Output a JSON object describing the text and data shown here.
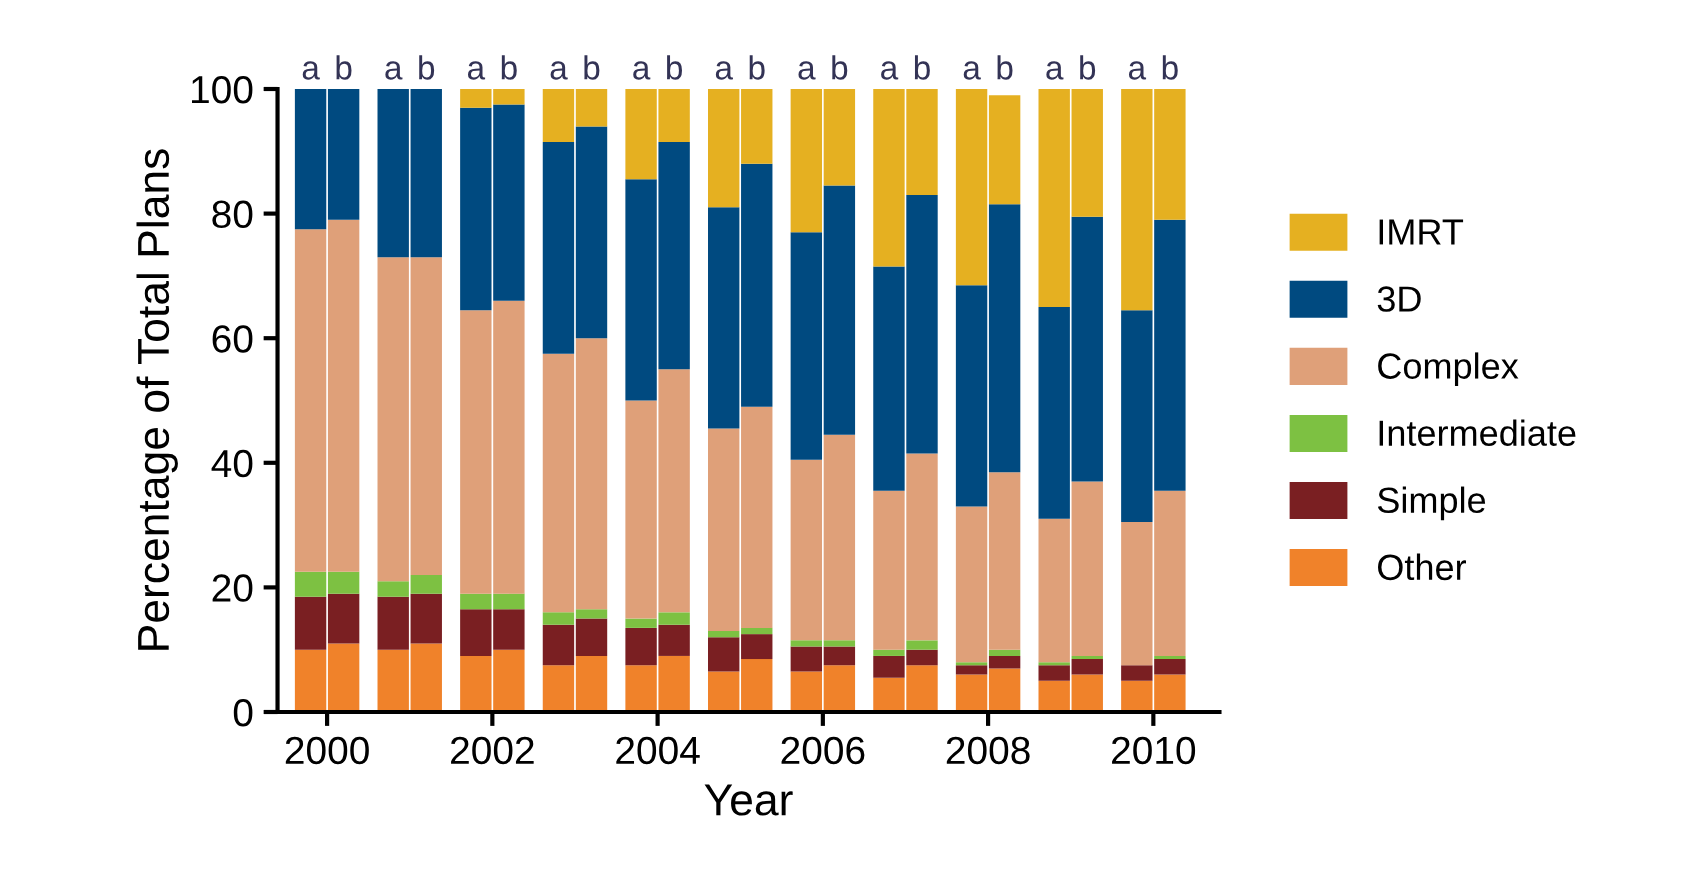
{
  "chart_data": {
    "type": "bar",
    "stacked": true,
    "xlabel": "Year",
    "ylabel": "Percentage of Total Plans",
    "x": [
      1999.8,
      2000.2,
      2000.8,
      2001.2,
      2001.8,
      2002.2,
      2002.8,
      2003.2,
      2003.8,
      2004.2,
      2004.8,
      2005.2,
      2005.8,
      2006.2,
      2006.8,
      2007.2,
      2007.8,
      2008.2,
      2008.8,
      2009.2,
      2009.8,
      2010.2
    ],
    "xlim": [
      1999.4,
      2010.8
    ],
    "xticks": [
      2000,
      2002,
      2004,
      2006,
      2008,
      2010
    ],
    "ylim": [
      0,
      100
    ],
    "yticks": [
      0,
      20,
      40,
      60,
      80,
      100
    ],
    "grid": false,
    "legend": "right",
    "series": [
      {
        "name": "Other",
        "color": "#f0822a",
        "values": [
          10,
          11,
          10,
          11,
          9,
          10,
          7.5,
          9,
          7.5,
          9,
          6.5,
          8.5,
          6.5,
          7.5,
          5.5,
          7.5,
          6,
          7,
          5,
          6,
          5,
          6
        ]
      },
      {
        "name": "Simple",
        "color": "#7a1f22",
        "values": [
          8.5,
          8,
          8.5,
          8,
          7.5,
          6.5,
          6.5,
          6,
          6,
          5,
          5.5,
          4,
          4,
          3,
          3.5,
          2.5,
          1.5,
          2,
          2.5,
          2.5,
          2.5,
          2.5
        ]
      },
      {
        "name": "Intermediate",
        "color": "#7dc142",
        "values": [
          4,
          3.5,
          2.5,
          3,
          2.5,
          2.5,
          2,
          1.5,
          1.5,
          2,
          1,
          1,
          1,
          1,
          1,
          1.5,
          0.5,
          1,
          0.5,
          0.5,
          0,
          0.5
        ]
      },
      {
        "name": "Complex",
        "color": "#dfa079",
        "values": [
          55,
          56.5,
          52,
          51,
          45.5,
          47,
          41.5,
          43.5,
          35,
          39,
          32.5,
          35.5,
          29,
          33,
          25.5,
          30,
          25,
          28.5,
          23,
          28,
          23,
          26.5
        ]
      },
      {
        "name": "3D",
        "color": "#004a80",
        "values": [
          22.5,
          21,
          27,
          27,
          32.5,
          31.5,
          34,
          34,
          35.5,
          36.5,
          35.5,
          39,
          36.5,
          40,
          36,
          41.5,
          35.5,
          43,
          34,
          42.5,
          34,
          43.5
        ]
      },
      {
        "name": "IMRT",
        "color": "#e5b021",
        "values": [
          0,
          0,
          0,
          0,
          3,
          2.5,
          8.5,
          6,
          14.5,
          8.5,
          19,
          12,
          23,
          15.5,
          28.5,
          17,
          31.5,
          17.5,
          35,
          20.5,
          35.5,
          21
        ]
      }
    ],
    "annotations": [
      {
        "text": "a",
        "x": 1999.8,
        "y": 100
      },
      {
        "text": "b",
        "x": 2000.2,
        "y": 100
      },
      {
        "text": "a",
        "x": 2000.8,
        "y": 100
      },
      {
        "text": "b",
        "x": 2001.2,
        "y": 100
      },
      {
        "text": "a",
        "x": 2001.8,
        "y": 100
      },
      {
        "text": "b",
        "x": 2002.2,
        "y": 100
      },
      {
        "text": "a",
        "x": 2002.8,
        "y": 100
      },
      {
        "text": "b",
        "x": 2003.2,
        "y": 100
      },
      {
        "text": "a",
        "x": 2003.8,
        "y": 100
      },
      {
        "text": "b",
        "x": 2004.2,
        "y": 100
      },
      {
        "text": "a",
        "x": 2004.8,
        "y": 100
      },
      {
        "text": "b",
        "x": 2005.2,
        "y": 100
      },
      {
        "text": "a",
        "x": 2005.8,
        "y": 100
      },
      {
        "text": "b",
        "x": 2006.2,
        "y": 100
      },
      {
        "text": "a",
        "x": 2006.8,
        "y": 100
      },
      {
        "text": "b",
        "x": 2007.2,
        "y": 100
      },
      {
        "text": "a",
        "x": 2007.8,
        "y": 100
      },
      {
        "text": "b",
        "x": 2008.2,
        "y": 100
      },
      {
        "text": "a",
        "x": 2008.8,
        "y": 100
      },
      {
        "text": "b",
        "x": 2009.2,
        "y": 100
      },
      {
        "text": "a",
        "x": 2009.8,
        "y": 100
      },
      {
        "text": "b",
        "x": 2010.2,
        "y": 100
      }
    ]
  }
}
